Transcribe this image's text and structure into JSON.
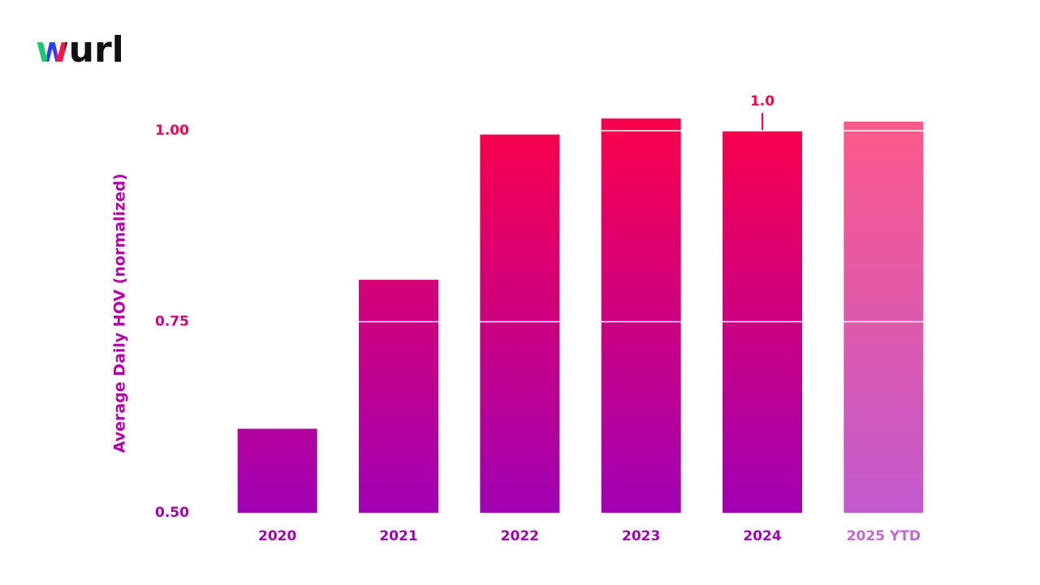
{
  "logo": "wurl",
  "chart_data": {
    "type": "bar",
    "y_label": "Average Daily HOV (normalized)",
    "categories": [
      "2020",
      "2021",
      "2022",
      "2023",
      "2024",
      "2025 YTD"
    ],
    "values": [
      0.61,
      0.805,
      0.995,
      1.016,
      1.0,
      1.012
    ],
    "value_labels": [
      null,
      null,
      null,
      null,
      "1.0",
      null
    ],
    "bar_opacity": [
      1,
      1,
      1,
      1,
      1,
      0.65
    ],
    "color_bottom": "#a000b4",
    "color_top": "#f7004e",
    "ylim": [
      0.5,
      1.05
    ],
    "yticks": [
      {
        "value": 0.5,
        "label": "0.50"
      },
      0.75,
      {
        "value": 1,
        "label": "1.00"
      }
    ],
    "grid": true
  }
}
